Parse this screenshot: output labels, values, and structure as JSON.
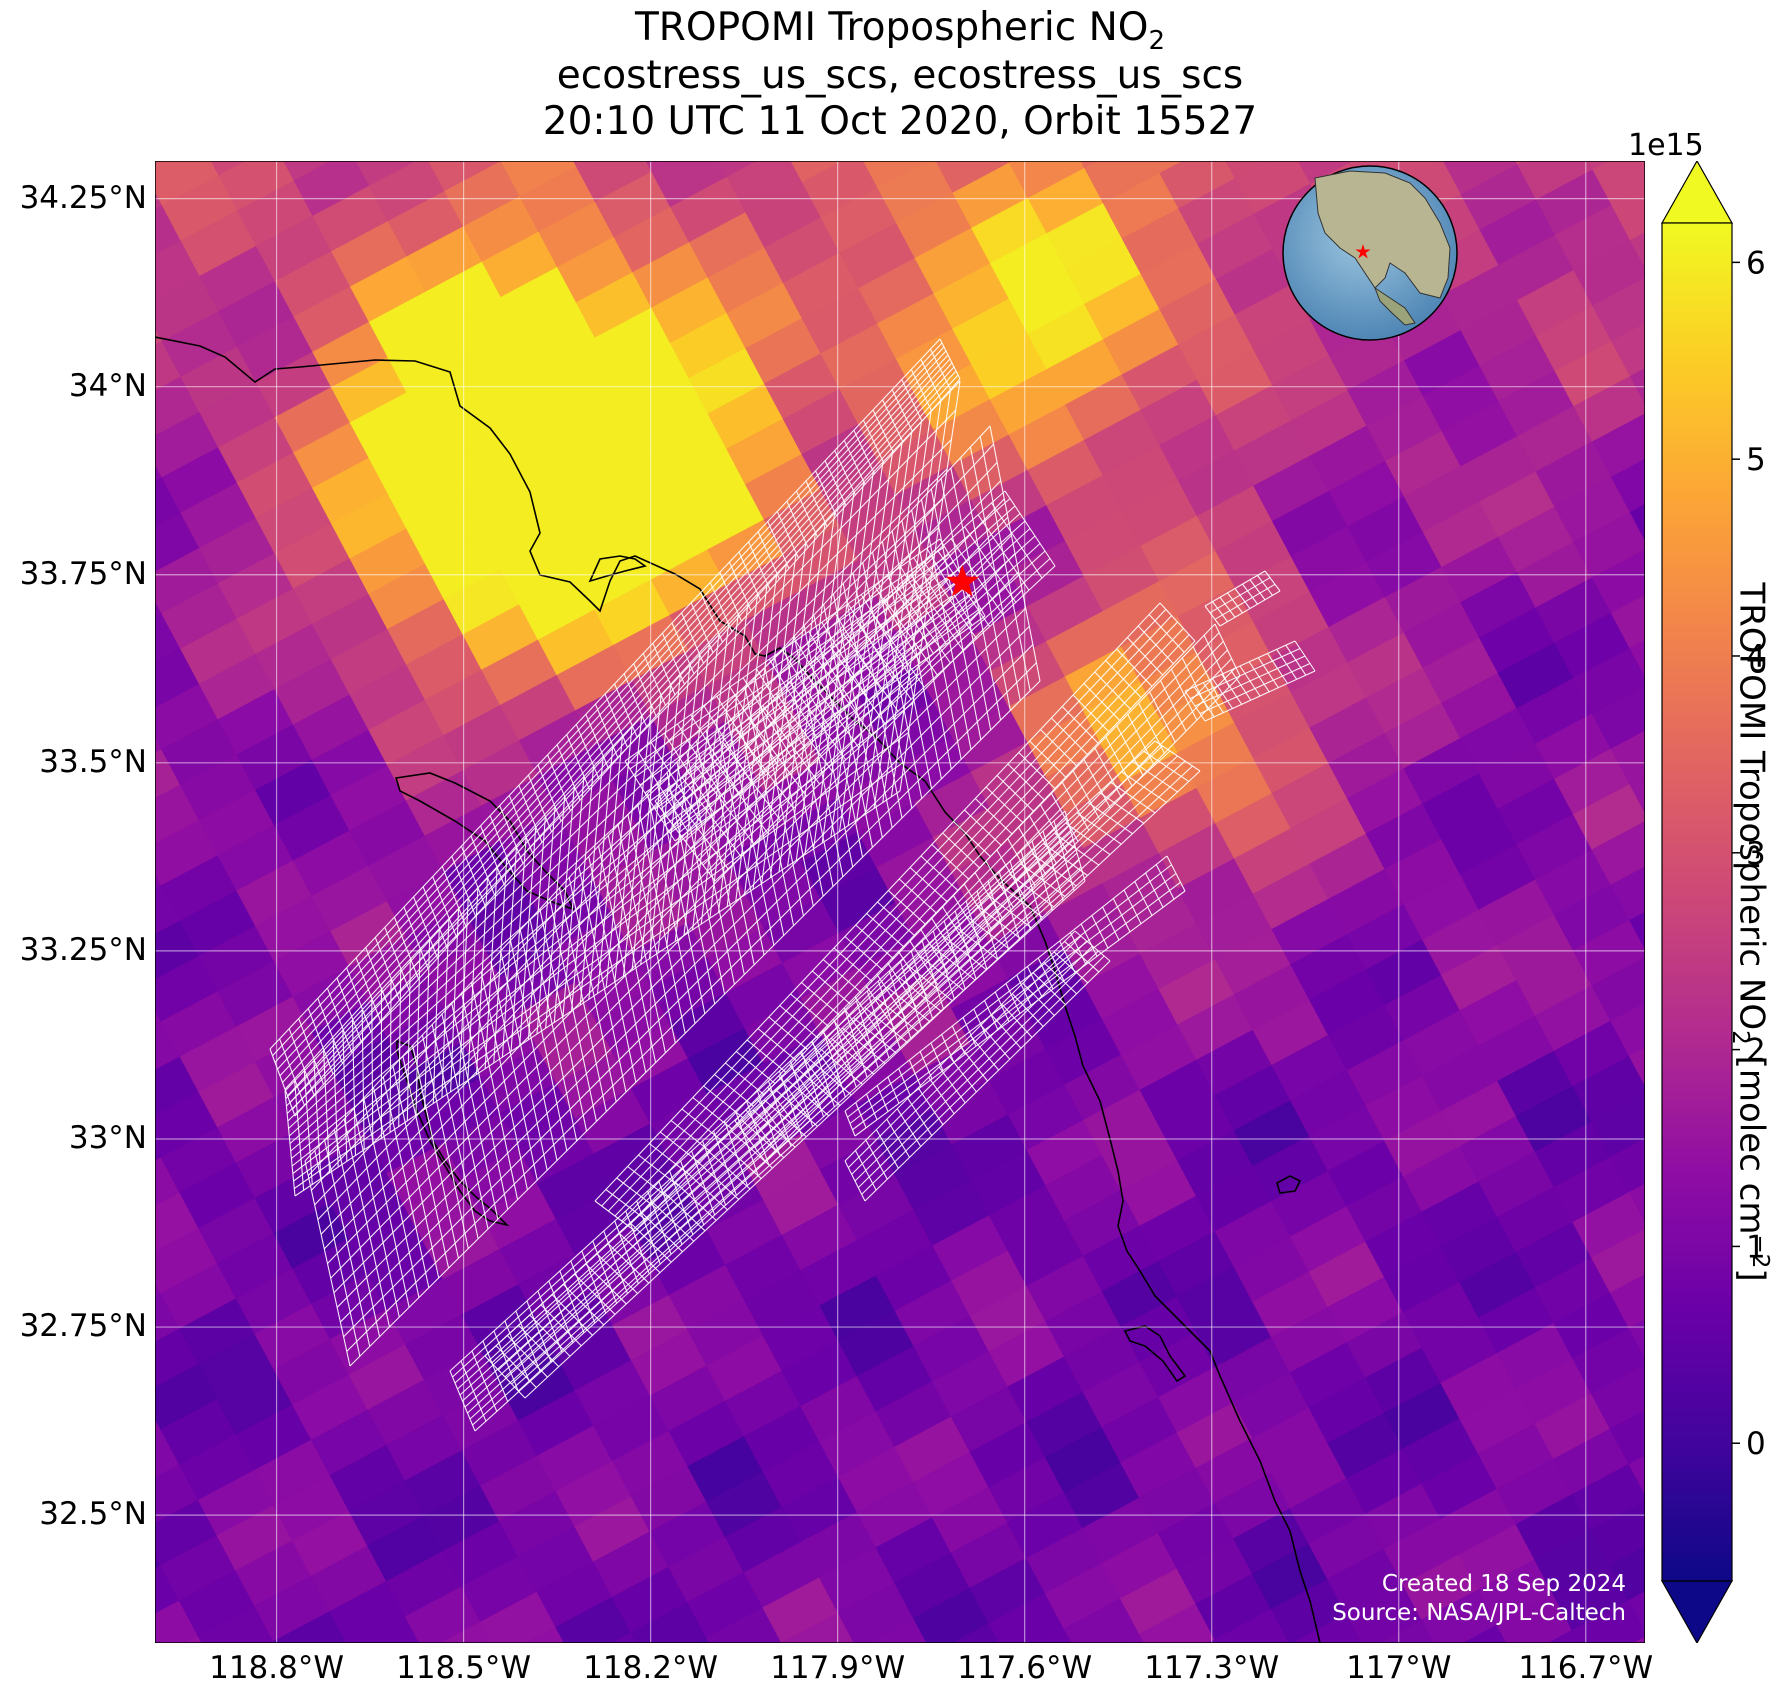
{
  "title": {
    "line1": "TROPOMI Tropospheric NO",
    "line1_sub": "2",
    "line2": "ecostress_us_scs, ecostress_us_scs",
    "line3": "20:10 UTC 11 Oct 2020, Orbit 15527"
  },
  "map": {
    "lon_range": [
      -118.995,
      -116.605
    ],
    "lat_range": [
      32.33,
      34.3
    ],
    "lon_ticks": [
      {
        "value": -118.8,
        "label": "118.8°W"
      },
      {
        "value": -118.5,
        "label": "118.5°W"
      },
      {
        "value": -118.2,
        "label": "118.2°W"
      },
      {
        "value": -117.9,
        "label": "117.9°W"
      },
      {
        "value": -117.6,
        "label": "117.6°W"
      },
      {
        "value": -117.3,
        "label": "117.3°W"
      },
      {
        "value": -117.0,
        "label": "117°W"
      },
      {
        "value": -116.7,
        "label": "116.7°W"
      }
    ],
    "lat_ticks": [
      {
        "value": 34.25,
        "label": "34.25°N"
      },
      {
        "value": 34.0,
        "label": "34°N"
      },
      {
        "value": 33.75,
        "label": "33.75°N"
      },
      {
        "value": 33.5,
        "label": "33.5°N"
      },
      {
        "value": 33.25,
        "label": "33.25°N"
      },
      {
        "value": 33.0,
        "label": "33°N"
      },
      {
        "value": 32.75,
        "label": "32.75°N"
      },
      {
        "value": 32.5,
        "label": "32.5°N"
      }
    ],
    "gridlines": true,
    "site_marker": {
      "lon": -117.7,
      "lat": 33.74,
      "symbol": "red-star"
    },
    "colormap": "plasma",
    "background_color": "#6a0fa3",
    "footprint_color": "#ffffff",
    "coastline_color": "#000000"
  },
  "colorbar": {
    "label": "TROPOMI Tropospheric NO",
    "label_sub": "2",
    "label_units": " [molec cm",
    "label_sup": "−2",
    "label_end": "]",
    "multiplier": "1e15",
    "range": [
      -0.7,
      6.2
    ],
    "ticks": [
      {
        "value": 0,
        "label": "0"
      },
      {
        "value": 1,
        "label": "1"
      },
      {
        "value": 2,
        "label": "2"
      },
      {
        "value": 3,
        "label": "3"
      },
      {
        "value": 4,
        "label": "4"
      },
      {
        "value": 5,
        "label": "5"
      },
      {
        "value": 6,
        "label": "6"
      }
    ],
    "extend": "both"
  },
  "inset_globe": {
    "marker": "red-star",
    "region": "North America"
  },
  "credit": {
    "line1": "Created 18 Sep 2024",
    "line2": "Source: NASA/JPL-Caltech"
  }
}
